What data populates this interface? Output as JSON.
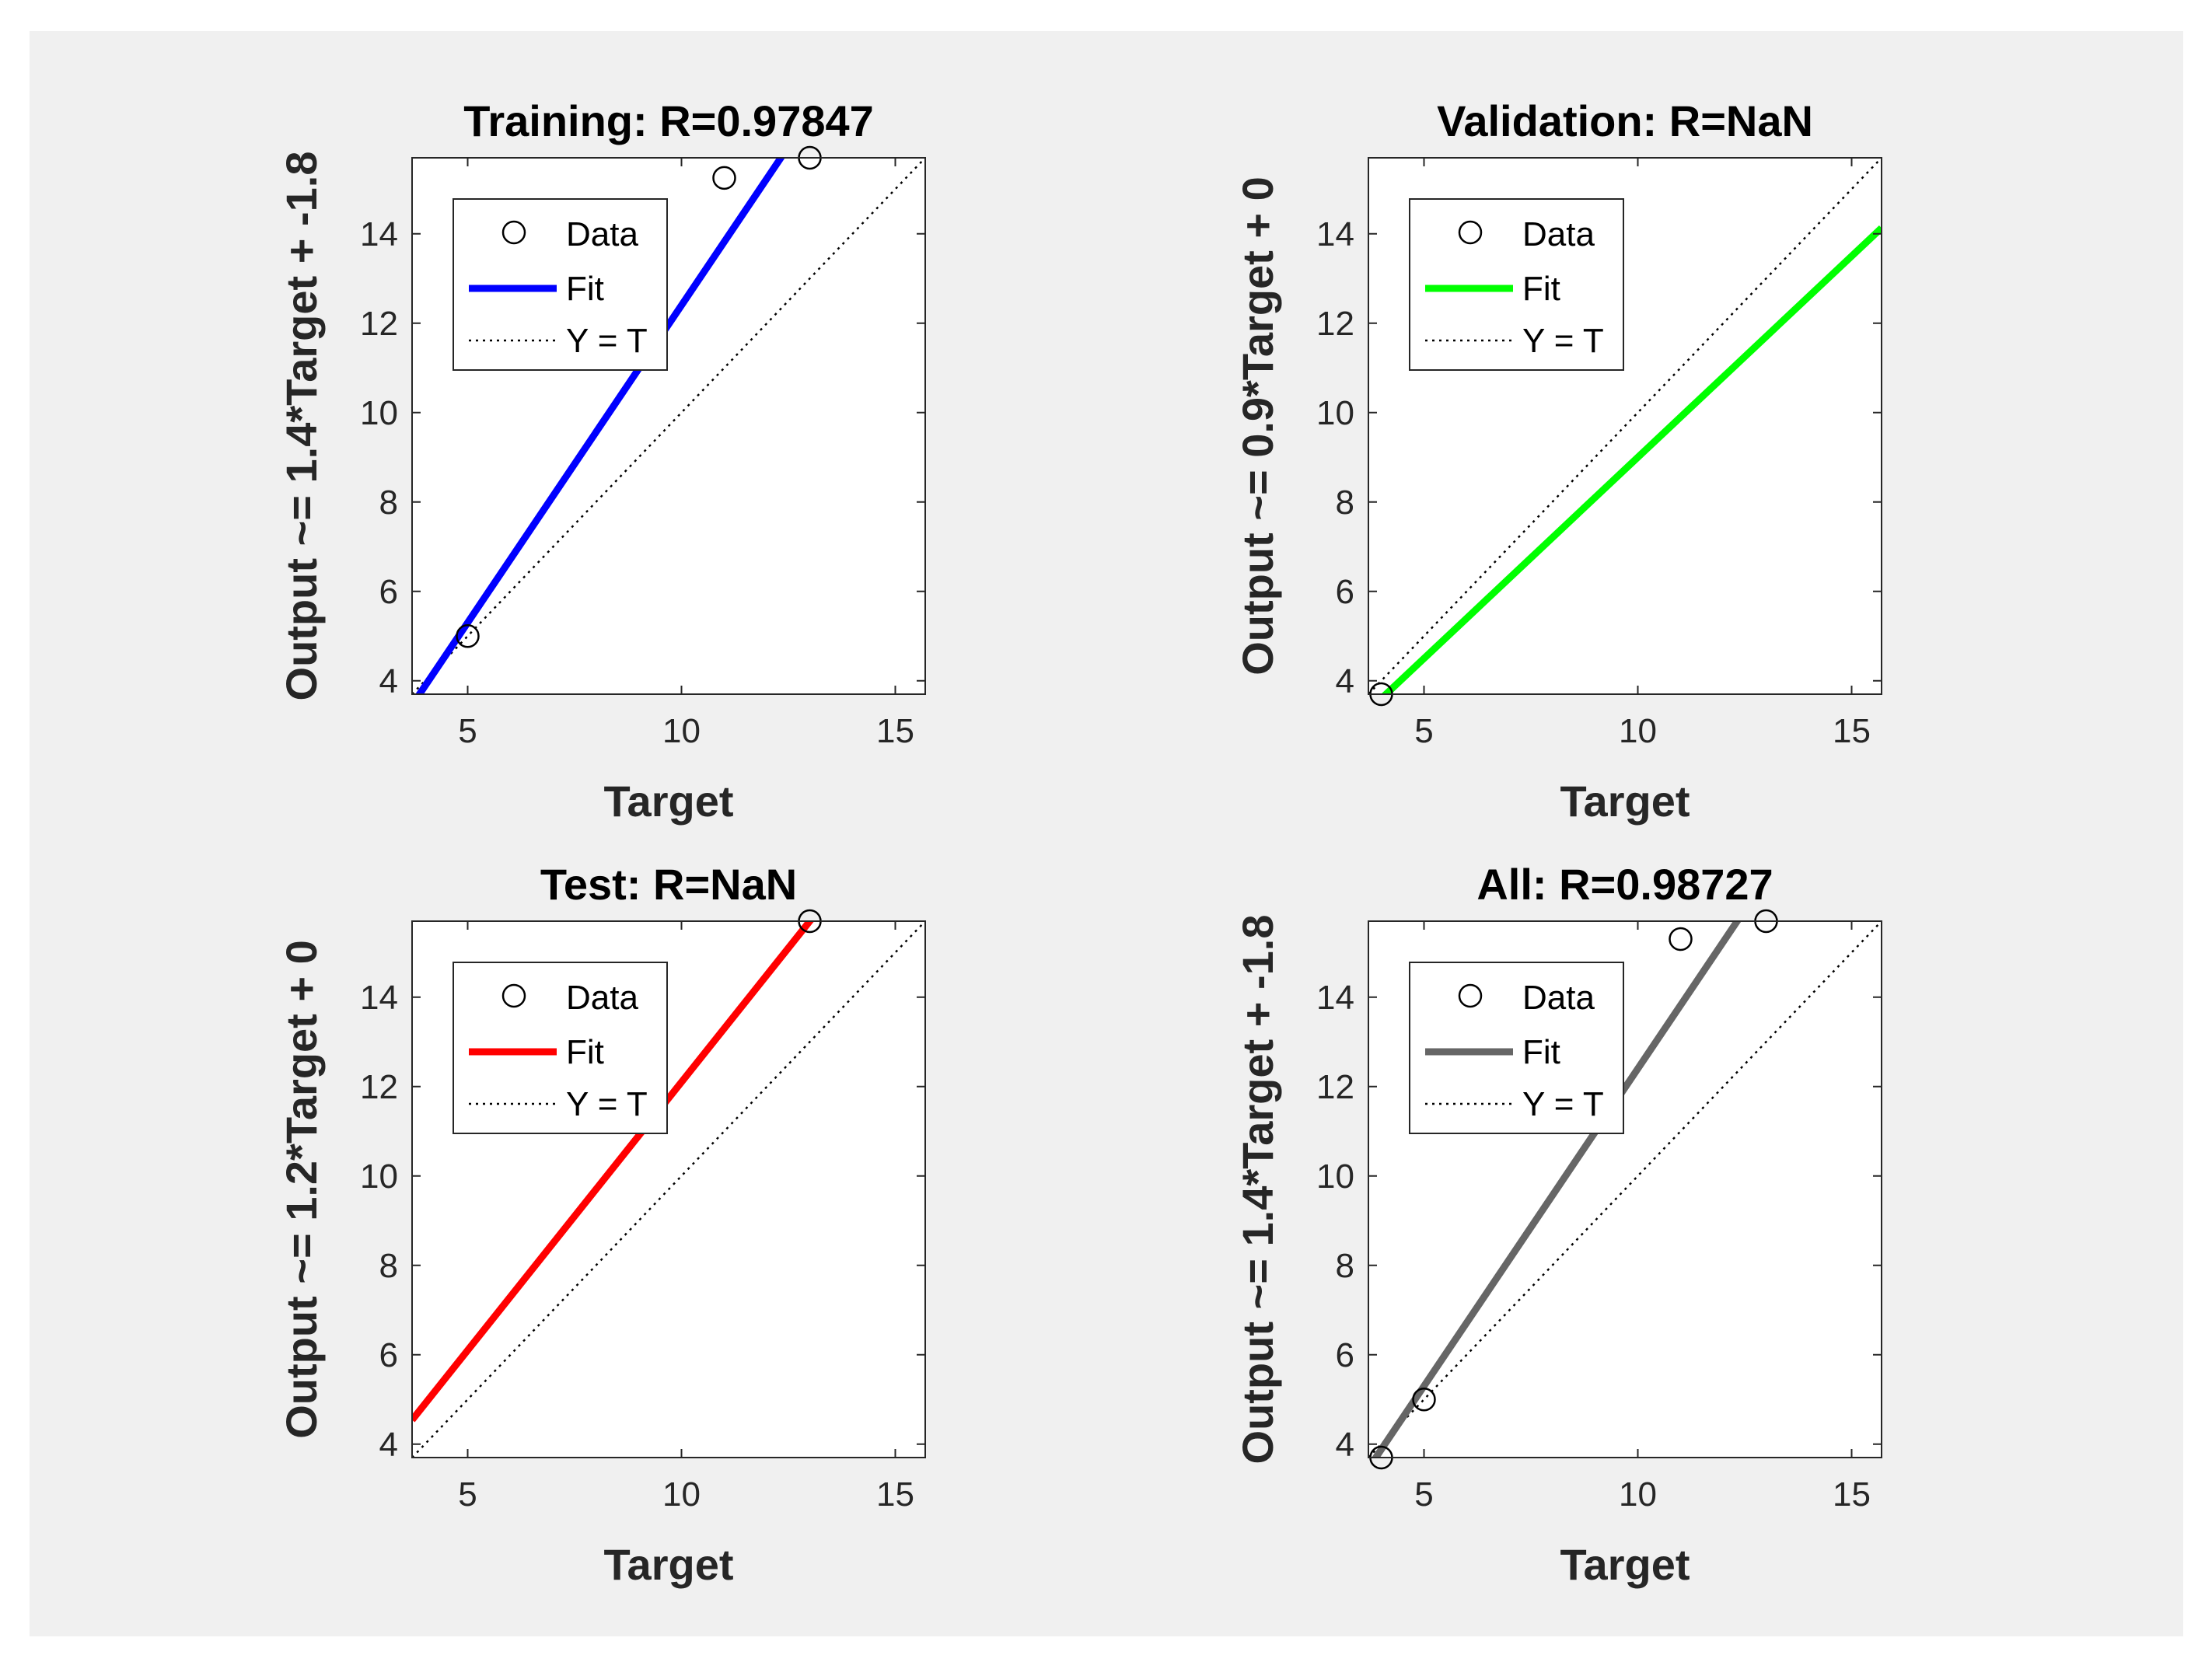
{
  "figure": {
    "background": "#f0f0f0",
    "page_background": "#ffffff"
  },
  "chart_data": [
    {
      "type": "scatter",
      "title": "Training: R=0.97847",
      "xlabel": "Target",
      "ylabel": "Output ~= 1.4*Target + -1.8",
      "xlim": [
        3.7,
        15.7
      ],
      "ylim": [
        3.7,
        15.7
      ],
      "xticks": [
        5,
        10,
        15
      ],
      "yticks": [
        4,
        6,
        8,
        10,
        12,
        14
      ],
      "points": [
        {
          "x": 5,
          "y": 5
        },
        {
          "x": 11,
          "y": 15.25
        },
        {
          "x": 13,
          "y": 15.7
        }
      ],
      "fit": {
        "slope": 1.42,
        "intercept": -1.8,
        "color": "#0000ff"
      },
      "legend": {
        "location": "top-left",
        "entries": [
          "Data",
          "Fit",
          "Y = T"
        ]
      }
    },
    {
      "type": "scatter",
      "title": "Validation: R=NaN",
      "xlabel": "Target",
      "ylabel": "Output ~= 0.9*Target + 0",
      "xlim": [
        3.7,
        15.7
      ],
      "ylim": [
        3.7,
        15.7
      ],
      "xticks": [
        5,
        10,
        15
      ],
      "yticks": [
        4,
        6,
        8,
        10,
        12,
        14
      ],
      "points": [
        {
          "x": 4,
          "y": 3.7
        }
      ],
      "fit": {
        "slope": 0.9,
        "intercept": 0,
        "color": "#00ff00"
      },
      "legend": {
        "location": "top-left",
        "entries": [
          "Data",
          "Fit",
          "Y = T"
        ]
      }
    },
    {
      "type": "scatter",
      "title": "Test: R=NaN",
      "xlabel": "Target",
      "ylabel": "Output ~= 1.2*Target + 0",
      "xlim": [
        3.7,
        15.7
      ],
      "ylim": [
        3.7,
        15.7
      ],
      "xticks": [
        5,
        10,
        15
      ],
      "yticks": [
        4,
        6,
        8,
        10,
        12,
        14
      ],
      "points": [
        {
          "x": 13,
          "y": 15.7
        }
      ],
      "fit": {
        "slope": 1.2,
        "intercept": 0.1,
        "color": "#ff0000"
      },
      "legend": {
        "location": "top-left",
        "entries": [
          "Data",
          "Fit",
          "Y = T"
        ]
      }
    },
    {
      "type": "scatter",
      "title": "All: R=0.98727",
      "xlabel": "Target",
      "ylabel": "Output ~= 1.4*Target + -1.8",
      "xlim": [
        3.7,
        15.7
      ],
      "ylim": [
        3.7,
        15.7
      ],
      "xticks": [
        5,
        10,
        15
      ],
      "yticks": [
        4,
        6,
        8,
        10,
        12,
        14
      ],
      "points": [
        {
          "x": 4,
          "y": 3.7
        },
        {
          "x": 5,
          "y": 5
        },
        {
          "x": 11,
          "y": 15.3
        },
        {
          "x": 13,
          "y": 15.7
        }
      ],
      "fit": {
        "slope": 1.42,
        "intercept": -1.8,
        "color": "#666666"
      },
      "legend": {
        "location": "top-left",
        "entries": [
          "Data",
          "Fit",
          "Y = T"
        ]
      }
    }
  ]
}
